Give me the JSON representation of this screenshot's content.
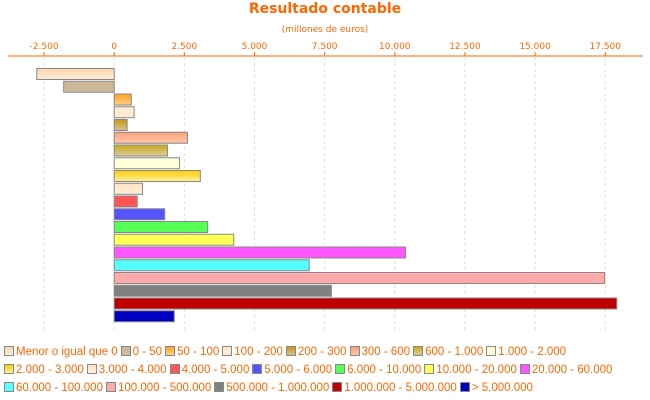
{
  "chart_data": {
    "type": "bar",
    "orientation": "horizontal",
    "title": "Resultado contable",
    "subtitle": "(millones de euros)",
    "xlim": [
      -3000,
      18500
    ],
    "x_ticks": [
      -2500,
      0,
      2500,
      5000,
      7500,
      10000,
      12500,
      15000,
      17500
    ],
    "x_tick_labels": [
      "-2.500",
      "0",
      "2.500",
      "5.000",
      "7.500",
      "10.000",
      "12.500",
      "15.000",
      "17.500"
    ],
    "x_axis_position": "top",
    "grid": "vertical dashed",
    "legend_position": "bottom",
    "categories": [
      "Menor o igual que 0",
      "0 - 50",
      "50 - 100",
      "100 - 200",
      "200 - 300",
      "300 - 600",
      "600 - 1.000",
      "1.000 - 2.000",
      "2.000 - 3.000",
      "3.000 - 4.000",
      "4.000 - 5.000",
      "5.000 - 6.000",
      "6.000 - 10.000",
      "10.000 - 20.000",
      "20.000 - 60.000",
      "60.000 - 100.000",
      "100.000 - 500.000",
      "500.000 - 1.000.000",
      "1.000.000 - 5.000.000",
      "> 5.000.000"
    ],
    "values": [
      -2760,
      -1800,
      610,
      710,
      460,
      2610,
      1900,
      2330,
      3070,
      1010,
      820,
      1800,
      3330,
      4260,
      10380,
      6950,
      17480,
      7740,
      17910,
      2140
    ],
    "colors": [
      "#ffd6aa",
      "#cdb99a",
      "#ffa126",
      "#ffebd2",
      "#c99a12",
      "#ffa07a",
      "#c9a91a",
      "#ffffd8",
      "#ffcc00",
      "#ffe2bd",
      "#ff5555",
      "#5555ff",
      "#55ff55",
      "#ffff55",
      "#ff55ff",
      "#55ffff",
      "#ffaaaa",
      "#808080",
      "#c00000",
      "#0000c0"
    ],
    "gradient_colors": [
      "#ffecd8",
      "#cdb99a",
      "#ffd080",
      "#ffebd2",
      "#d6c090",
      "#ffc8a8",
      "#d8cc9a",
      "#ffffd8",
      "#fff0a0",
      "#fff0dc",
      "#ff5555",
      "#5555ff",
      "#55ff55",
      "#ffff55",
      "#ff55ff",
      "#55ffff",
      "#ffaaaa",
      "#808080",
      "#c00000",
      "#0000c0"
    ]
  },
  "text_color": "#ff6600"
}
